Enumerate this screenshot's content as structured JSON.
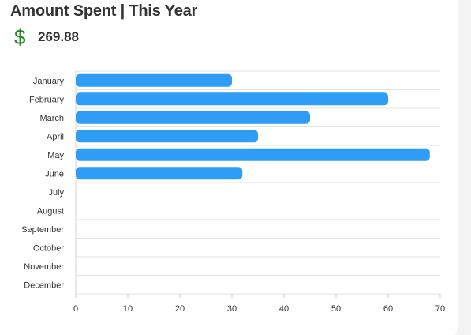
{
  "header": {
    "title": "Amount Spent | This Year",
    "currency_icon": "dollar-icon",
    "currency_color": "#1f8a1f",
    "amount": "269.88"
  },
  "chart_data": {
    "type": "bar",
    "orientation": "horizontal",
    "categories": [
      "January",
      "February",
      "March",
      "April",
      "May",
      "June",
      "July",
      "August",
      "September",
      "October",
      "November",
      "December"
    ],
    "values": [
      30,
      60,
      45,
      35,
      68,
      32,
      null,
      null,
      null,
      null,
      null,
      null
    ],
    "xlim": [
      0,
      70
    ],
    "xticks": [
      0,
      10,
      20,
      30,
      40,
      50,
      60,
      70
    ],
    "grid": true,
    "legend": "none",
    "bar_color": "#2f9cf5"
  }
}
